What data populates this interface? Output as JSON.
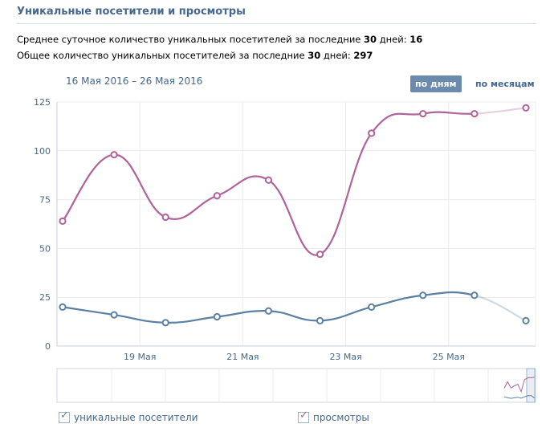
{
  "header": {
    "title": "Уникальные посетители и просмотры"
  },
  "stats": {
    "line1_prefix": "Среднее суточное количество уникальных посетителей за последние ",
    "line1_days": "30",
    "line1_mid": " дней: ",
    "line1_value": "16",
    "line2_prefix": "Общее количество уникальных посетителей за последние ",
    "line2_days": "30",
    "line2_mid": " дней: ",
    "line2_value": "297"
  },
  "controls": {
    "date_range": "16 Мая 2016 – 26 Мая 2016",
    "by_days": "по дням",
    "by_months": "по месяцам"
  },
  "legend": {
    "unique_label": "уникальные посетители",
    "views_label": "просмотры"
  },
  "colors": {
    "unique": "#5b80a3",
    "views": "#b0629b",
    "axis_text": "#45688e",
    "grid": "#ececec"
  },
  "chart_data": {
    "type": "line",
    "title": "Уникальные посетители и просмотры",
    "x": [
      "2016-05-17",
      "2016-05-18",
      "2016-05-19",
      "2016-05-20",
      "2016-05-21",
      "2016-05-22",
      "2016-05-23",
      "2016-05-24",
      "2016-05-25",
      "2016-05-26"
    ],
    "xticks": [
      {
        "date": "2016-05-18.5",
        "label": "19 Мая"
      },
      {
        "date": "2016-05-20.5",
        "label": "21 Мая"
      },
      {
        "date": "2016-05-22.5",
        "label": "23 Мая"
      },
      {
        "date": "2016-05-24.5",
        "label": "25 Мая"
      }
    ],
    "yticks": [
      0,
      25,
      50,
      75,
      100,
      125
    ],
    "ylim": [
      0,
      125
    ],
    "grid": true,
    "legend_position": "bottom",
    "series": [
      {
        "name": "уникальные посетители",
        "values": [
          20,
          16,
          12,
          15,
          18,
          13,
          20,
          26,
          26,
          13
        ]
      },
      {
        "name": "просмотры",
        "values": [
          64,
          98,
          66,
          77,
          85,
          47,
          109,
          119,
          119,
          122
        ]
      }
    ],
    "last_point_incomplete": true
  }
}
